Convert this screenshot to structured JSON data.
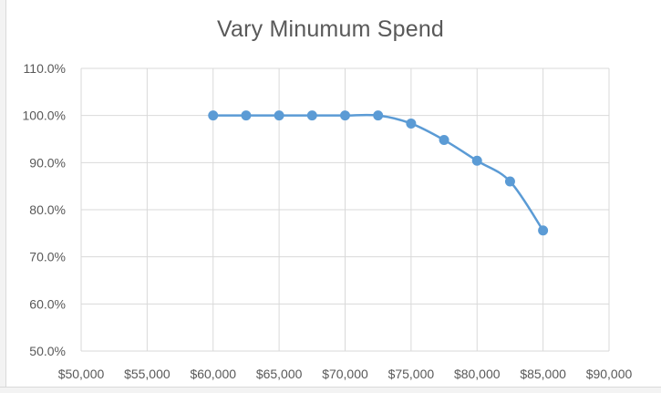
{
  "chart_data": {
    "type": "line",
    "title": "Vary Minumum Spend",
    "xlabel": "",
    "ylabel": "",
    "x_tick_labels": [
      "$50,000",
      "$55,000",
      "$60,000",
      "$65,000",
      "$70,000",
      "$75,000",
      "$80,000",
      "$85,000",
      "$90,000"
    ],
    "x_ticks": [
      50000,
      55000,
      60000,
      65000,
      70000,
      75000,
      80000,
      85000,
      90000
    ],
    "y_tick_labels": [
      "50.0%",
      "60.0%",
      "70.0%",
      "80.0%",
      "90.0%",
      "100.0%",
      "110.0%"
    ],
    "y_ticks": [
      50,
      60,
      70,
      80,
      90,
      100,
      110
    ],
    "xlim": [
      50000,
      90000
    ],
    "ylim": [
      50,
      110
    ],
    "grid": true,
    "smooth": true,
    "series": [
      {
        "color": "#5b9bd5",
        "x": [
          60000,
          62500,
          65000,
          67500,
          70000,
          72500,
          75000,
          77500,
          80000,
          82500,
          85000
        ],
        "y": [
          100.0,
          100.0,
          100.0,
          100.0,
          100.0,
          100.0,
          98.3,
          94.8,
          90.4,
          86.0,
          75.6
        ]
      }
    ]
  }
}
